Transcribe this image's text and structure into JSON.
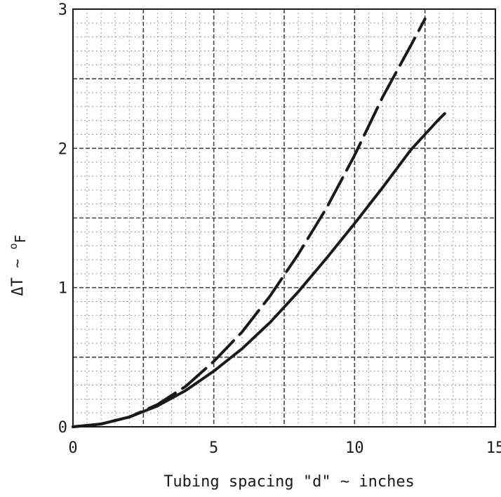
{
  "chart_data": {
    "type": "line",
    "xlabel": "Tubing spacing \"d\" ~ inches",
    "ylabel_main": "ΔT ~ ",
    "ylabel_sup": "o",
    "ylabel_sub": "F",
    "xlim": [
      0,
      15
    ],
    "ylim": [
      0,
      3
    ],
    "xticks": [
      0,
      5,
      10,
      15
    ],
    "yticks": [
      0,
      1,
      2,
      3
    ],
    "grid": true,
    "series": [
      {
        "style": "dashed",
        "color": "#1a1a1a",
        "x": [
          0,
          1,
          2,
          3,
          4,
          5,
          6,
          7,
          8,
          9,
          10,
          11,
          12,
          12.5
        ],
        "y": [
          0,
          0.02,
          0.07,
          0.16,
          0.29,
          0.47,
          0.68,
          0.94,
          1.24,
          1.57,
          1.95,
          2.37,
          2.74,
          2.93
        ]
      },
      {
        "style": "solid",
        "color": "#1a1a1a",
        "x": [
          0,
          1,
          2,
          3,
          4,
          5,
          6,
          7,
          8,
          9,
          10,
          11,
          12,
          13,
          13.2
        ],
        "y": [
          0,
          0.02,
          0.07,
          0.15,
          0.26,
          0.4,
          0.56,
          0.75,
          0.97,
          1.21,
          1.46,
          1.72,
          1.99,
          2.21,
          2.25
        ]
      }
    ]
  }
}
